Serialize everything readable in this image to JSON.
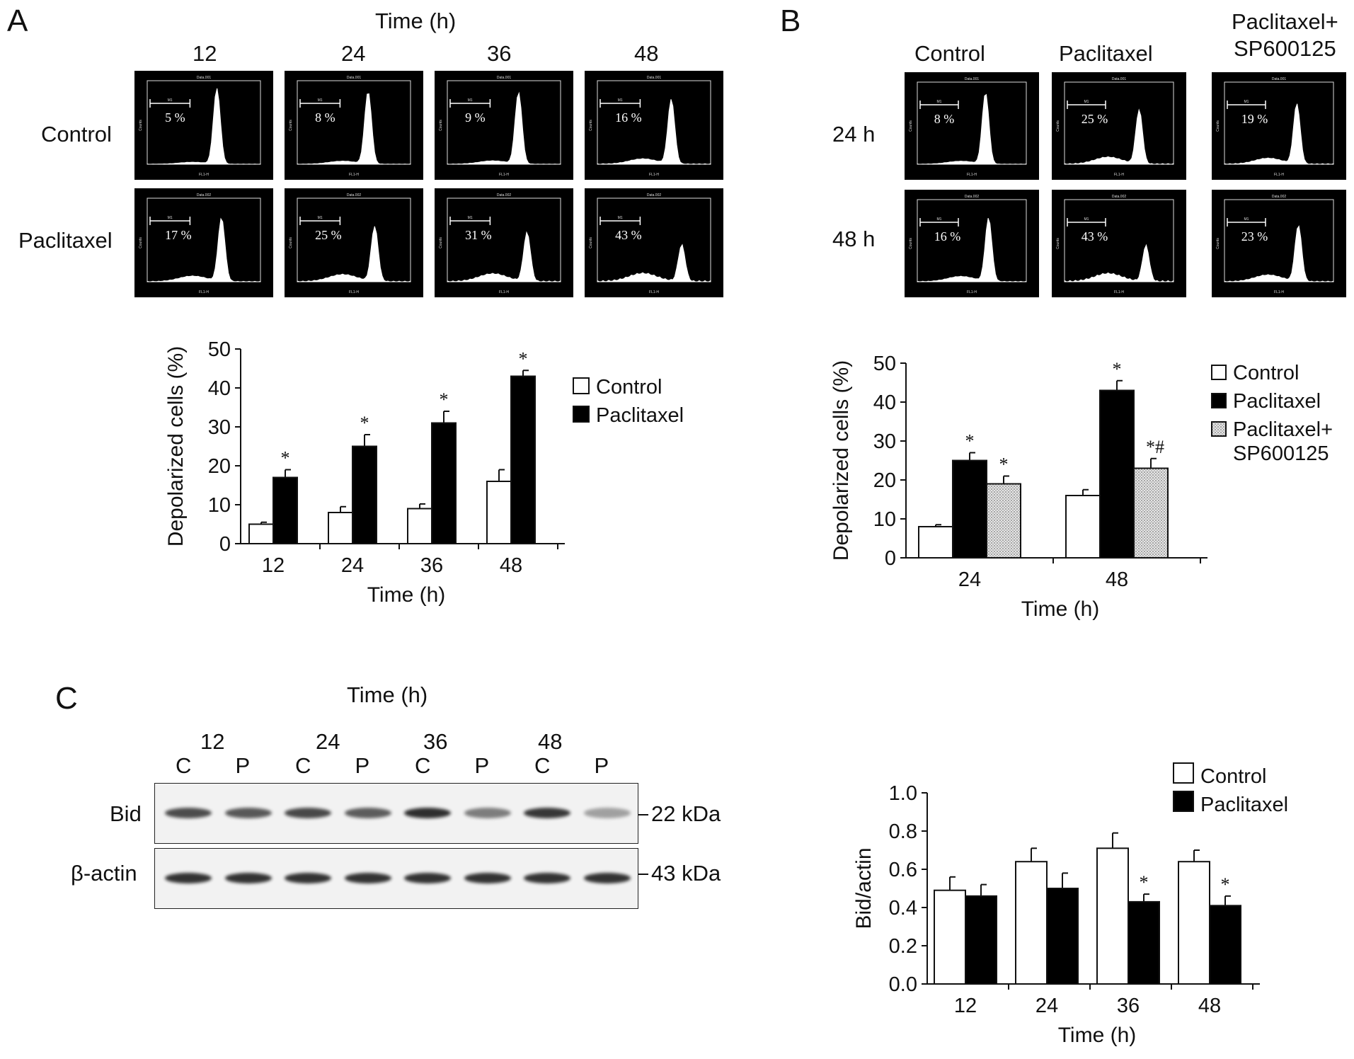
{
  "panelA": {
    "letter": "A",
    "time_title": "Time (h)",
    "time_cols": [
      "12",
      "24",
      "36",
      "48"
    ],
    "rows": [
      "Control",
      "Paclitaxel"
    ],
    "histograms": [
      [
        "5 %",
        "8 %",
        "9 %",
        "16 %"
      ],
      [
        "17 %",
        "25 %",
        "31 %",
        "43 %"
      ]
    ],
    "histogram_header": [
      "Data.001",
      "Data.002"
    ],
    "gate_label": "M1",
    "histogram_xlabel": "FL1-H",
    "histogram_ylabel": "Counts"
  },
  "panelB": {
    "letter": "B",
    "cols": [
      "Control",
      "Paclitaxel",
      "Paclitaxel+\nSP600125"
    ],
    "rows": [
      "24 h",
      "48 h"
    ],
    "histograms": [
      [
        "8 %",
        "25 %",
        "19 %"
      ],
      [
        "16 %",
        "43 %",
        "23 %"
      ]
    ]
  },
  "panelC": {
    "letter": "C",
    "time_title": "Time (h)",
    "time_cols": [
      "12",
      "24",
      "36",
      "48"
    ],
    "lanes": [
      "C",
      "P",
      "C",
      "P",
      "C",
      "P",
      "C",
      "P"
    ],
    "proteins": [
      {
        "name": "Bid",
        "size": "22 kDa",
        "intensity": [
          0.78,
          0.72,
          0.8,
          0.7,
          0.92,
          0.55,
          0.88,
          0.38
        ]
      },
      {
        "name": "β-actin",
        "size": "43 kDa",
        "intensity": [
          0.9,
          0.9,
          0.9,
          0.9,
          0.9,
          0.9,
          0.9,
          0.9
        ]
      }
    ]
  },
  "chart_data": [
    {
      "id": "A",
      "type": "bar",
      "categories": [
        "12",
        "24",
        "36",
        "48"
      ],
      "series": [
        {
          "name": "Control",
          "values": [
            5,
            8,
            9,
            16
          ],
          "errors": [
            0.5,
            1.5,
            1.2,
            3
          ],
          "stars": [
            false,
            false,
            false,
            false
          ],
          "fill": "#ffffff"
        },
        {
          "name": "Paclitaxel",
          "values": [
            17,
            25,
            31,
            43
          ],
          "errors": [
            2,
            3,
            3,
            1.5
          ],
          "stars": [
            true,
            true,
            true,
            true
          ],
          "fill": "#000000"
        }
      ],
      "xlabel": "Time (h)",
      "ylabel": "Depolarized cells (%)",
      "ylim": [
        0,
        50
      ],
      "yticks": [
        0,
        10,
        20,
        30,
        40,
        50
      ],
      "legend_position": "right"
    },
    {
      "id": "B",
      "type": "bar",
      "categories": [
        "24",
        "48"
      ],
      "series": [
        {
          "name": "Control",
          "values": [
            8,
            16
          ],
          "errors": [
            0.5,
            1.5
          ],
          "marks": [
            "",
            ""
          ],
          "fill": "#ffffff"
        },
        {
          "name": "Paclitaxel",
          "values": [
            25,
            43
          ],
          "errors": [
            2,
            2.5
          ],
          "marks": [
            "*",
            "*"
          ],
          "fill": "#000000"
        },
        {
          "name": "Paclitaxel+\nSP600125",
          "values": [
            19,
            23
          ],
          "errors": [
            2,
            2.5
          ],
          "marks": [
            "*",
            "*#"
          ],
          "fill": "#bdbdbd"
        }
      ],
      "xlabel": "Time (h)",
      "ylabel": "Depolarized cells (%)",
      "ylim": [
        0,
        50
      ],
      "yticks": [
        0,
        10,
        20,
        30,
        40,
        50
      ],
      "legend_position": "right"
    },
    {
      "id": "C",
      "type": "bar",
      "categories": [
        "12",
        "24",
        "36",
        "48"
      ],
      "series": [
        {
          "name": "Control",
          "values": [
            0.49,
            0.64,
            0.71,
            0.64
          ],
          "errors": [
            0.07,
            0.07,
            0.08,
            0.06
          ],
          "stars": [
            false,
            false,
            false,
            false
          ],
          "fill": "#ffffff"
        },
        {
          "name": "Paclitaxel",
          "values": [
            0.46,
            0.5,
            0.43,
            0.41
          ],
          "errors": [
            0.06,
            0.08,
            0.04,
            0.05
          ],
          "stars": [
            false,
            false,
            true,
            true
          ],
          "fill": "#000000"
        }
      ],
      "xlabel": "Time (h)",
      "ylabel": "Bid/actin",
      "ylim": [
        0,
        1.0
      ],
      "yticks": [
        "0.0",
        "0.2",
        "0.4",
        "0.6",
        "0.8",
        "1.0"
      ],
      "legend_position": "top-right"
    }
  ]
}
